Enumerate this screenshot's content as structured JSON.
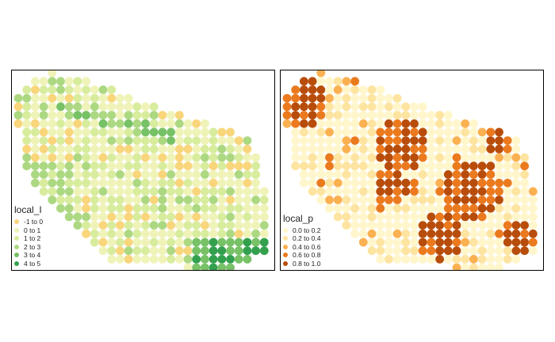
{
  "maps": [
    {
      "legend_title": "local_I",
      "classes": [
        {
          "label": "-1 to 0",
          "color": "#f9d57b"
        },
        {
          "label": "0 to 1",
          "color": "#f0f3b8"
        },
        {
          "label": "1 to 2",
          "color": "#d8ec9d"
        },
        {
          "label": "2 to 3",
          "color": "#acd882"
        },
        {
          "label": "3 to 4",
          "color": "#77c166"
        },
        {
          "label": "4 to 5",
          "color": "#33a04e"
        }
      ]
    },
    {
      "legend_title": "local_p",
      "classes": [
        {
          "label": "0.0 to 0.2",
          "color": "#fff6cc"
        },
        {
          "label": "0.2 to 0.4",
          "color": "#fde4a0"
        },
        {
          "label": "0.4 to 0.6",
          "color": "#fbb151"
        },
        {
          "label": "0.6 to 0.8",
          "color": "#eb7a1f"
        },
        {
          "label": "0.8 to 1.0",
          "color": "#b84d0b"
        }
      ]
    }
  ]
}
